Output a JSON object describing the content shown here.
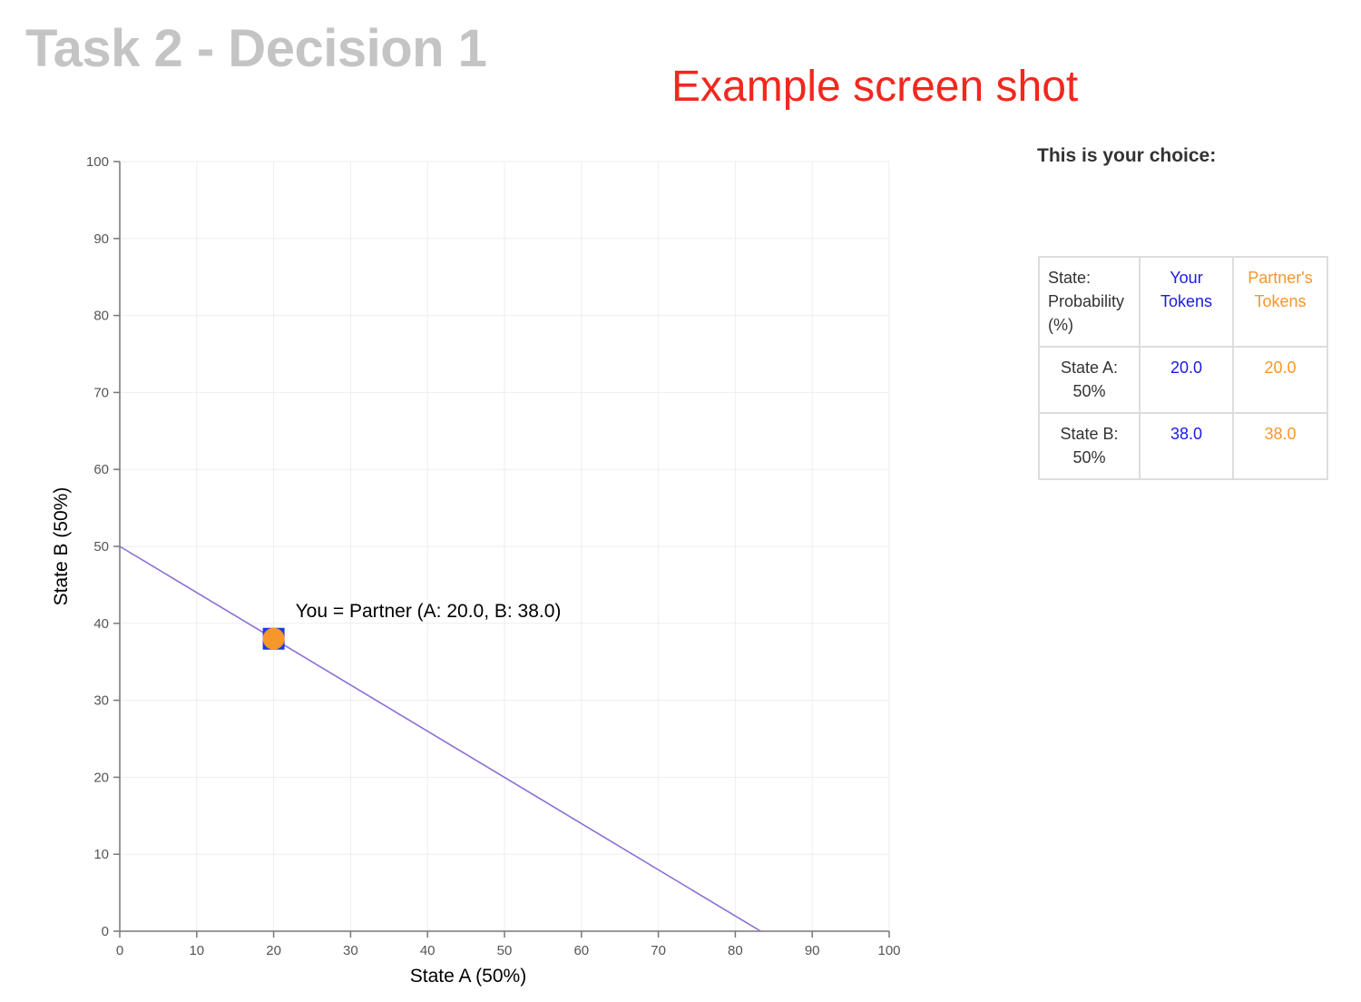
{
  "page": {
    "title": "Task 2 - Decision 1",
    "overlay_label": "Example screen shot"
  },
  "colors": {
    "title": "#c4c4c4",
    "overlay": "#f0281e",
    "your_tokens": "#1a1ae6",
    "partner_tokens": "#f7962a",
    "budget_line": "#8a6fd6",
    "grid": "#eeeeee",
    "axis": "#777777"
  },
  "side_panel": {
    "heading": "This is your choice:",
    "table": {
      "headers": [
        "State: Probability (%)",
        "Your Tokens",
        "Partner's Tokens"
      ],
      "rows": [
        {
          "state": "State A: 50%",
          "you": "20.0",
          "partner": "20.0"
        },
        {
          "state": "State B: 50%",
          "you": "38.0",
          "partner": "38.0"
        }
      ]
    }
  },
  "chart_data": {
    "type": "line",
    "title": "",
    "xlabel": "State A (50%)",
    "ylabel": "State B (50%)",
    "xlim": [
      0,
      100
    ],
    "ylim": [
      0,
      100
    ],
    "x_ticks": [
      0,
      10,
      20,
      30,
      40,
      50,
      60,
      70,
      80,
      90,
      100
    ],
    "y_ticks": [
      0,
      10,
      20,
      30,
      40,
      50,
      60,
      70,
      80,
      90,
      100
    ],
    "grid": true,
    "budget_line": {
      "x": [
        0,
        83.3
      ],
      "y": [
        50,
        0
      ]
    },
    "selected_point": {
      "x": 20.0,
      "y": 38.0,
      "label": "You = Partner (A: 20.0, B: 38.0)"
    }
  }
}
